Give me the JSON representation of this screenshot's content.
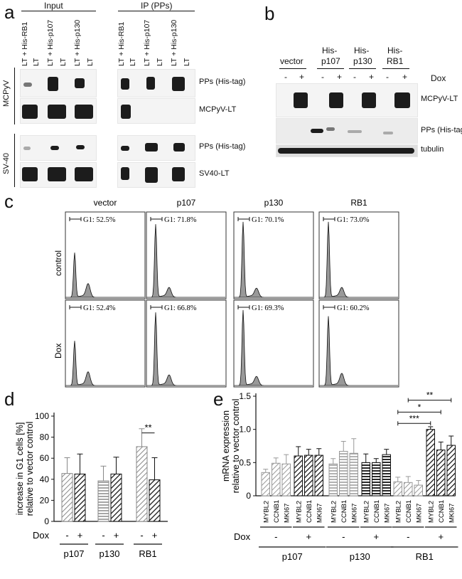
{
  "panel_a": {
    "letter": "a",
    "input_header": "Input",
    "ip_header": "IP (PPs)",
    "lane_labels": [
      "LT + His-RB1",
      "LT",
      "LT + His-p107",
      "LT",
      "LT + His-p130",
      "LT"
    ],
    "group_mcpyv": "MCPyV",
    "group_sv40": "SV-40",
    "rows": [
      "PPs (His-tag)",
      "MCPyV-LT",
      "PPs (His-tag)",
      "SV40-LT"
    ]
  },
  "panel_b": {
    "letter": "b",
    "groups": [
      "vector",
      "His-\np107",
      "His-\np130",
      "His-\nRB1"
    ],
    "group_top": [
      "",
      "His-",
      "His-",
      "His-"
    ],
    "group_bottom": [
      "vector",
      "p107",
      "p130",
      "RB1"
    ],
    "signs": [
      "-",
      "+",
      "-",
      "+",
      "-",
      "+",
      "-",
      "+"
    ],
    "dox_label": "Dox",
    "rows": [
      "MCPyV-LT",
      "PPs (His-tag)",
      "tubulin"
    ]
  },
  "panel_c": {
    "letter": "c",
    "columns": [
      "vector",
      "p107",
      "p130",
      "RB1"
    ],
    "rows": [
      "control",
      "Dox"
    ],
    "g1_control": [
      "G1: 52.5%",
      "G1: 71.8%",
      "G1: 70.1%",
      "G1: 73.0%"
    ],
    "g1_dox": [
      "G1: 52.4%",
      "G1: 66.8%",
      "G1: 69.3%",
      "G1: 60.2%"
    ]
  },
  "panel_d": {
    "letter": "d",
    "chart_data": {
      "type": "bar",
      "ylabel": "increase in G1 cells [%]\nrelative to vector control",
      "ylabel_lines": [
        "increase in G1 cells [%]",
        "relative to vector control"
      ],
      "ylim": [
        0,
        100
      ],
      "yticks": [
        "0",
        "20",
        "40",
        "60",
        "80",
        "100"
      ],
      "groups": [
        "p107",
        "p130",
        "RB1"
      ],
      "dox_label": "Dox",
      "signs": [
        "-",
        "+",
        "-",
        "+",
        "-",
        "+"
      ],
      "values": [
        45.5,
        45,
        38.5,
        45,
        71,
        39.5
      ],
      "errors": [
        15,
        19,
        14,
        16,
        17,
        21
      ],
      "significance": "**"
    }
  },
  "panel_e": {
    "letter": "e",
    "chart_data": {
      "type": "bar",
      "ylabel_lines": [
        "mRNA expression",
        "relative to vector control"
      ],
      "ylim": [
        0,
        1.5
      ],
      "yticks": [
        "0",
        "0.5",
        "1.0",
        "1.5"
      ],
      "genes": [
        "MYBL2",
        "CCNB1",
        "MKI67"
      ],
      "groups": [
        "p107",
        "p130",
        "RB1"
      ],
      "dox_label": "Dox",
      "dox_signs": [
        "-",
        "+",
        "-",
        "+",
        "-",
        "+"
      ],
      "values": [
        0.35,
        0.49,
        0.48,
        0.6,
        0.61,
        0.61,
        0.48,
        0.67,
        0.64,
        0.5,
        0.5,
        0.62,
        0.21,
        0.2,
        0.16,
        1.0,
        0.69,
        0.76
      ],
      "errors": [
        0.05,
        0.08,
        0.14,
        0.14,
        0.09,
        0.1,
        0.08,
        0.15,
        0.22,
        0.13,
        0.06,
        0.08,
        0.07,
        0.09,
        0.07,
        0.04,
        0.12,
        0.14
      ],
      "significance": [
        "***",
        "*",
        "**"
      ]
    }
  }
}
